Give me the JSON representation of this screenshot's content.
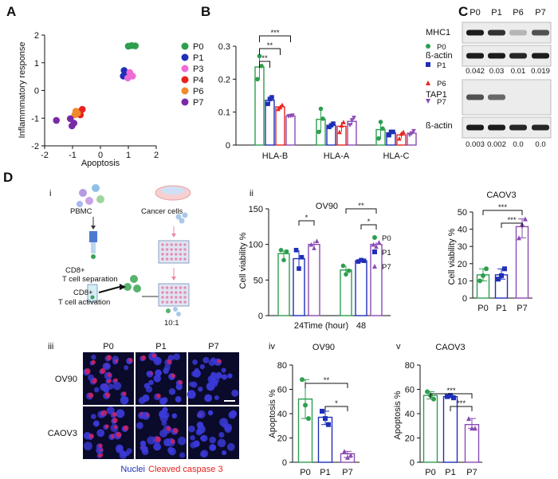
{
  "panels": {
    "a": "A",
    "b": "B",
    "c": "C",
    "d": "D",
    "sub_i": "i",
    "sub_ii": "ii",
    "sub_iii": "iii",
    "sub_iv": "iv",
    "sub_v": "v"
  },
  "colors": {
    "P0": "#2e9e4f",
    "P1": "#1f2fb8",
    "P3": "#f06bd6",
    "P4": "#e8231f",
    "P6": "#f08a2a",
    "P7": "#7a2aa8",
    "P6_bar": "#e8231f",
    "P7_bar": "#8a4bb3"
  },
  "scatter": {
    "chart_data": {
      "type": "scatter",
      "xlabel": "Apoptosis",
      "ylabel": "Inflammmatory response",
      "xlim": [
        -2,
        2
      ],
      "ylim": [
        -2,
        2
      ],
      "xticks": [
        "-2",
        "-1",
        "0",
        "1",
        "2"
      ],
      "yticks": [
        "-2",
        "-1",
        "0",
        "1",
        "2"
      ],
      "legend": [
        "P0",
        "P1",
        "P3",
        "P4",
        "P6",
        "P7"
      ],
      "series": [
        {
          "name": "P0",
          "points": [
            [
              1.0,
              1.6
            ],
            [
              1.12,
              1.62
            ],
            [
              1.25,
              1.61
            ]
          ]
        },
        {
          "name": "P1",
          "points": [
            [
              0.85,
              0.72
            ],
            [
              0.95,
              0.62
            ],
            [
              0.82,
              0.52
            ]
          ]
        },
        {
          "name": "P3",
          "points": [
            [
              1.05,
              0.65
            ],
            [
              1.15,
              0.52
            ],
            [
              0.98,
              0.45
            ]
          ]
        },
        {
          "name": "P4",
          "points": [
            [
              -0.65,
              -0.68
            ],
            [
              -0.78,
              -0.78
            ],
            [
              -0.72,
              -0.88
            ]
          ]
        },
        {
          "name": "P6",
          "points": [
            [
              -0.88,
              -0.75
            ],
            [
              -0.92,
              -0.88
            ],
            [
              -0.82,
              -0.82
            ]
          ]
        },
        {
          "name": "P7",
          "points": [
            [
              -1.58,
              -1.08
            ],
            [
              -1.08,
              -1.02
            ],
            [
              -0.95,
              -1.18
            ],
            [
              -1.02,
              -1.28
            ]
          ]
        }
      ]
    }
  },
  "hla": {
    "chart_data": {
      "type": "bar",
      "categories": [
        "HLA-B",
        "HLA-A",
        "HLA-C"
      ],
      "ylim": [
        0,
        0.3
      ],
      "yticks": [
        "0",
        "0.1",
        "0.2",
        "0.3"
      ],
      "legend": [
        "P0",
        "P1",
        "P6",
        "P7"
      ],
      "series": [
        {
          "name": "P0",
          "values": [
            0.237,
            0.078,
            0.047
          ],
          "points": [
            [
              0.2,
              0.27,
              0.24
            ],
            [
              0.04,
              0.11,
              0.08
            ],
            [
              0.02,
              0.07,
              0.05
            ]
          ]
        },
        {
          "name": "P1",
          "values": [
            0.136,
            0.06,
            0.037
          ],
          "points": [
            [
              0.125,
              0.14,
              0.145
            ],
            [
              0.055,
              0.06,
              0.065
            ],
            [
              0.03,
              0.04,
              0.04
            ]
          ]
        },
        {
          "name": "P6",
          "values": [
            0.116,
            0.057,
            0.031
          ],
          "points": [
            [
              0.11,
              0.115,
              0.122
            ],
            [
              0.04,
              0.06,
              0.07
            ],
            [
              0.02,
              0.035,
              0.04
            ]
          ]
        },
        {
          "name": "P7",
          "values": [
            0.088,
            0.072,
            0.036
          ],
          "points": [
            [
              0.087,
              0.088,
              0.089
            ],
            [
              0.06,
              0.075,
              0.082
            ],
            [
              0.03,
              0.035,
              0.042
            ]
          ]
        }
      ],
      "significance": [
        "**",
        "**",
        "***"
      ]
    }
  },
  "blot": {
    "lanes": [
      "P0",
      "P1",
      "P6",
      "P7"
    ],
    "top_rows": [
      "MHC1",
      "ß-actin"
    ],
    "top_values": [
      "0.042",
      "0.03",
      "0.01",
      "0.019"
    ],
    "bottom_rows": [
      "TAP1",
      "ß-actin"
    ],
    "bottom_values": [
      "0.003",
      "0.002",
      "0.0",
      "0.0"
    ]
  },
  "schematic": {
    "pbmc": "PBMC",
    "cancer": "Cancer cells",
    "sep_1": "CD8+",
    "sep_2": "T cell separation",
    "act_1": "CD8+",
    "act_2": "T cell activation",
    "ratio": "10:1"
  },
  "ov90_viability": {
    "chart_data": {
      "type": "bar",
      "title": "OV90",
      "xlabel": "Time (hour)",
      "ylabel": "Cell viability %",
      "categories": [
        "24",
        "48"
      ],
      "ylim": [
        0,
        150
      ],
      "yticks": [
        "0",
        "50",
        "100",
        "150"
      ],
      "legend": [
        "P0",
        "P1",
        "P7"
      ],
      "series": [
        {
          "name": "P0",
          "values": [
            87,
            64
          ],
          "points": [
            [
              92,
              78,
              90
            ],
            [
              70,
              58,
              63
            ]
          ]
        },
        {
          "name": "P1",
          "values": [
            80,
            77
          ],
          "points": [
            [
              92,
              66,
              82
            ],
            [
              76,
              78,
              77
            ]
          ]
        },
        {
          "name": "P7",
          "values": [
            100,
            100
          ],
          "points": [
            [
              100,
              95,
              105
            ],
            [
              100,
              97,
              103
            ]
          ]
        }
      ],
      "significance": [
        "*",
        "**",
        "*"
      ]
    }
  },
  "caov3_viability": {
    "chart_data": {
      "type": "bar",
      "title": "CAOV3",
      "ylabel": "Cell viability %",
      "categories": [
        "P0",
        "P1",
        "P7"
      ],
      "ylim": [
        0,
        50
      ],
      "yticks": [
        "0",
        "10",
        "20",
        "30",
        "40",
        "50"
      ],
      "values": [
        13.5,
        13.5,
        41.5
      ],
      "points": [
        [
          10,
          13,
          17
        ],
        [
          11,
          13,
          17
        ],
        [
          35,
          43,
          46
        ]
      ],
      "significance": [
        "***",
        "***"
      ]
    }
  },
  "micro": {
    "cols": [
      "P0",
      "P1",
      "P7"
    ],
    "rows": [
      "OV90",
      "CAOV3"
    ],
    "legend_nuclei": "Nuclei",
    "legend_caspase": "Cleaved caspase 3"
  },
  "ov90_apoptosis": {
    "chart_data": {
      "type": "bar",
      "title": "OV90",
      "ylabel": "Apoptosis %",
      "categories": [
        "P0",
        "P1",
        "P7"
      ],
      "ylim": [
        0,
        80
      ],
      "yticks": [
        "0",
        "20",
        "40",
        "60",
        "80"
      ],
      "values": [
        52,
        37,
        7
      ],
      "points": [
        [
          68,
          47,
          36
        ],
        [
          42,
          36,
          31
        ],
        [
          9,
          4,
          6
        ]
      ],
      "significance": [
        "**",
        "*"
      ]
    }
  },
  "caov3_apoptosis": {
    "chart_data": {
      "type": "bar",
      "title": "CAOV3",
      "ylabel": "Apoptosis %",
      "categories": [
        "P0",
        "P1",
        "P7"
      ],
      "ylim": [
        0,
        80
      ],
      "yticks": [
        "0",
        "20",
        "40",
        "60",
        "80"
      ],
      "values": [
        55,
        54,
        31
      ],
      "points": [
        [
          58,
          55,
          52
        ],
        [
          54,
          55,
          53
        ],
        [
          36,
          28,
          28
        ]
      ],
      "significance": [
        "***",
        "***"
      ]
    }
  }
}
